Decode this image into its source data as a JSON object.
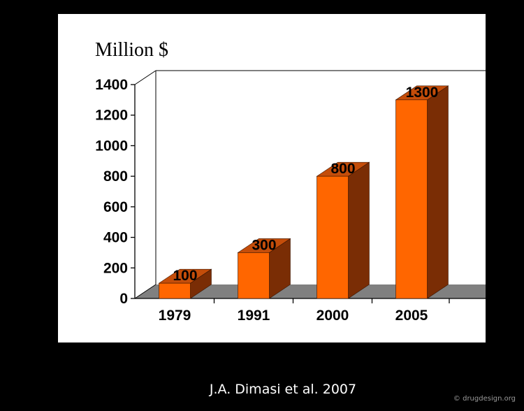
{
  "slide": {
    "citation": "J.A. Dimasi et al. 2007",
    "watermark": "© drugdesign.org"
  },
  "colors": {
    "background": "#000000",
    "panel": "#ffffff",
    "bar_front": "#ff6600",
    "bar_side": "#7a2d05",
    "bar_top": "#c44d0a",
    "floor": "#808080",
    "text": "#000000",
    "citation": "#ffffff"
  },
  "chart_data": {
    "type": "bar",
    "style": "3d-column",
    "unit_label": "Million $",
    "categories": [
      "1979",
      "1991",
      "2000",
      "2005"
    ],
    "values": [
      100,
      300,
      800,
      1300
    ],
    "data_labels": [
      "100",
      "300",
      "800",
      "1300"
    ],
    "y_ticks": [
      "0",
      "200",
      "400",
      "600",
      "800",
      "1000",
      "1200",
      "1400"
    ],
    "ylim": [
      0,
      1400
    ],
    "grid": false,
    "legend": "none"
  }
}
